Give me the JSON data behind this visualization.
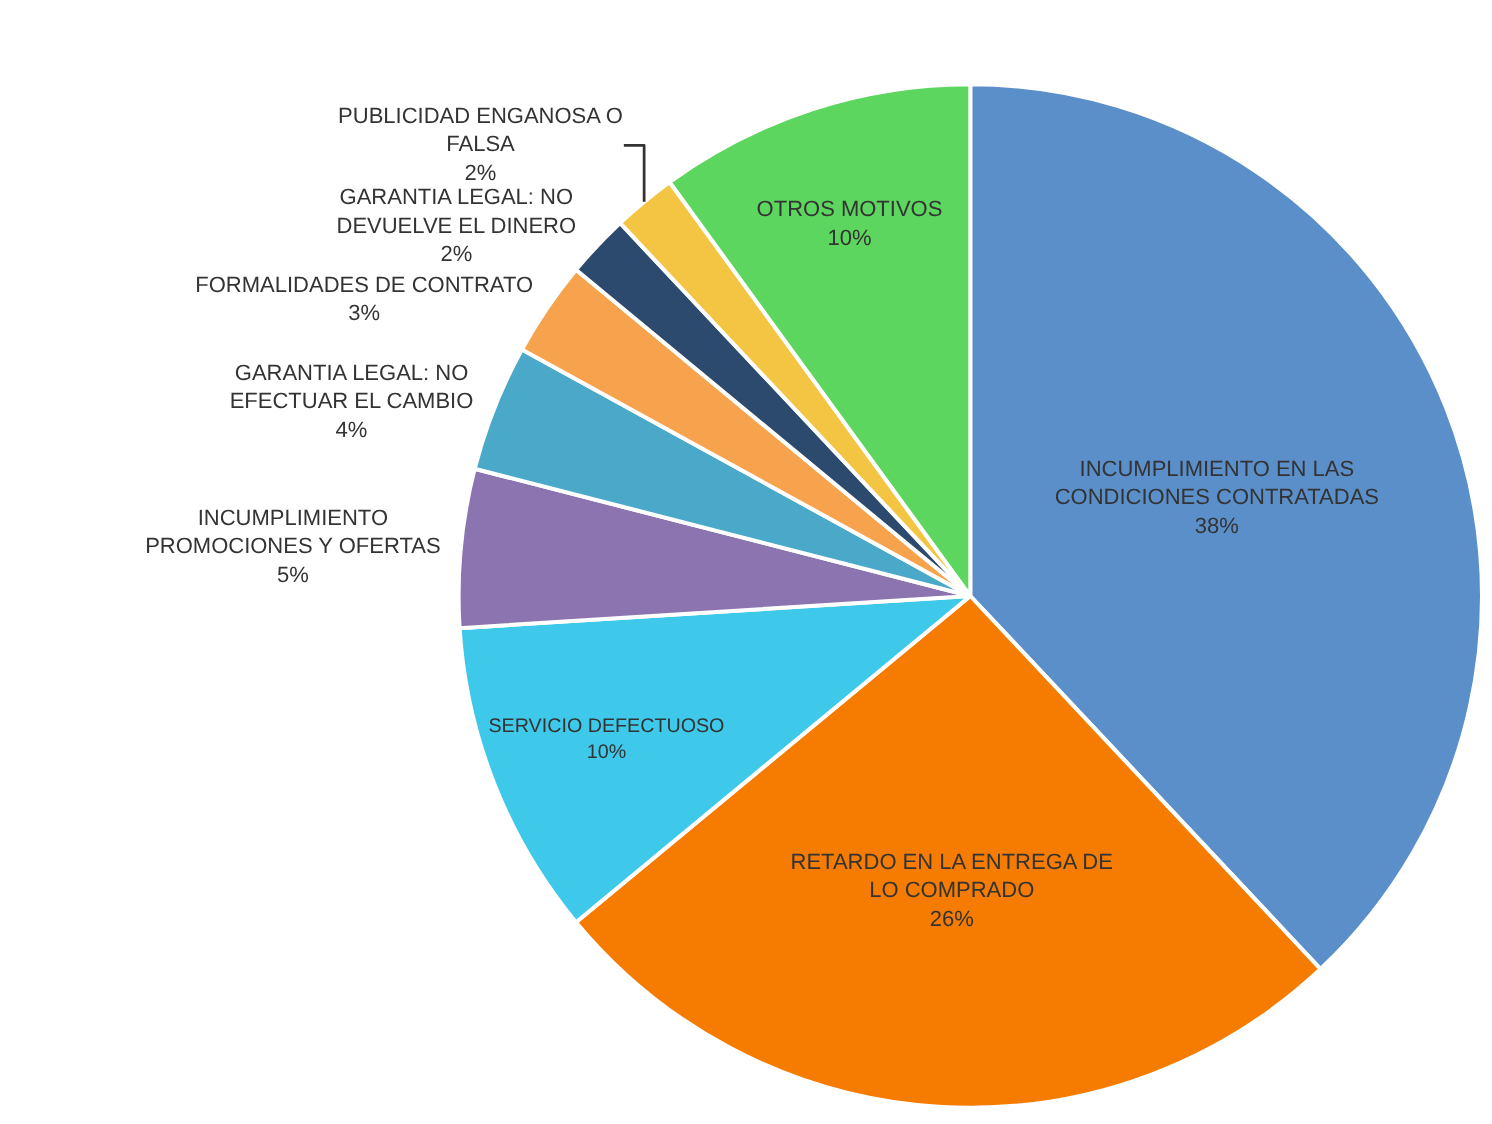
{
  "chart_data": {
    "type": "pie",
    "categories": [
      "INCUMPLIMIENTO EN LAS CONDICIONES CONTRATADAS",
      "RETARDO EN LA ENTREGA DE LO COMPRADO",
      "SERVICIO DEFECTUOSO",
      "INCUMPLIMIENTO PROMOCIONES Y OFERTAS",
      "GARANTIA LEGAL: NO EFECTUAR EL CAMBIO",
      "FORMALIDADES DE CONTRATO",
      "GARANTIA LEGAL: NO DEVUELVE EL DINERO",
      "PUBLICIDAD ENGANOSA O FALSA",
      "OTROS MOTIVOS"
    ],
    "values": [
      38,
      26,
      10,
      5,
      4,
      3,
      2,
      2,
      10
    ],
    "value_labels": [
      "38%",
      "26%",
      "10%",
      "5%",
      "4%",
      "3%",
      "2%",
      "2%",
      "10%"
    ],
    "colors": [
      "#5b8fc9",
      "#f57c00",
      "#3ec8ea",
      "#8b74b0",
      "#4aa9c9",
      "#f7a24c",
      "#2b4a6d",
      "#f4c542",
      "#5cd65e"
    ]
  }
}
